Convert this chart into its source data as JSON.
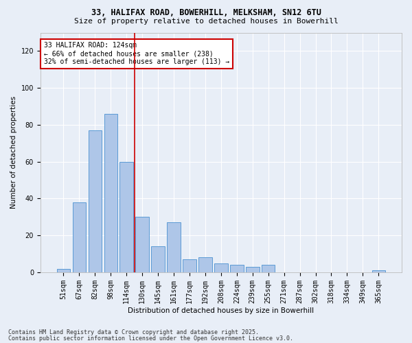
{
  "title1": "33, HALIFAX ROAD, BOWERHILL, MELKSHAM, SN12 6TU",
  "title2": "Size of property relative to detached houses in Bowerhill",
  "xlabel": "Distribution of detached houses by size in Bowerhill",
  "ylabel": "Number of detached properties",
  "categories": [
    "51sqm",
    "67sqm",
    "82sqm",
    "98sqm",
    "114sqm",
    "130sqm",
    "145sqm",
    "161sqm",
    "177sqm",
    "192sqm",
    "208sqm",
    "224sqm",
    "239sqm",
    "255sqm",
    "271sqm",
    "287sqm",
    "302sqm",
    "318sqm",
    "334sqm",
    "349sqm",
    "365sqm"
  ],
  "values": [
    2,
    38,
    77,
    86,
    60,
    30,
    14,
    27,
    7,
    8,
    5,
    4,
    3,
    4,
    0,
    0,
    0,
    0,
    0,
    0,
    1
  ],
  "bar_color": "#aec6e8",
  "bar_edgecolor": "#5b9bd5",
  "background_color": "#e8eef7",
  "grid_color": "#ffffff",
  "vline_color": "#cc0000",
  "vline_pos": 4.5,
  "annotation_title": "33 HALIFAX ROAD: 124sqm",
  "annotation_line1": "← 66% of detached houses are smaller (238)",
  "annotation_line2": "32% of semi-detached houses are larger (113) →",
  "annotation_box_color": "#cc0000",
  "footnote1": "Contains HM Land Registry data © Crown copyright and database right 2025.",
  "footnote2": "Contains public sector information licensed under the Open Government Licence v3.0.",
  "ylim": [
    0,
    130
  ],
  "yticks": [
    0,
    20,
    40,
    60,
    80,
    100,
    120
  ]
}
